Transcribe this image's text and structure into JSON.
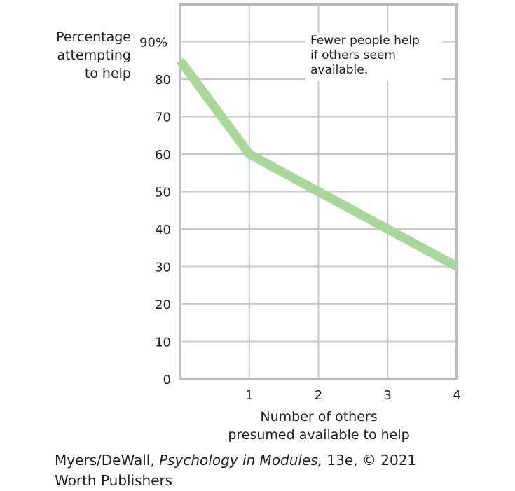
{
  "chart_data": {
    "type": "line",
    "x": [
      0,
      1,
      2,
      3,
      4
    ],
    "series": [
      {
        "name": "Percentage attempting to help",
        "values": [
          85,
          60,
          50,
          40,
          30
        ]
      }
    ],
    "xticks": [
      "1",
      "2",
      "3",
      "4"
    ],
    "yticks": [
      "0",
      "10",
      "20",
      "30",
      "40",
      "50",
      "60",
      "70",
      "80",
      "90%"
    ],
    "ylim": [
      0,
      100
    ],
    "xlim": [
      0,
      4
    ],
    "ylabel": [
      "Percentage",
      "attempting",
      "to help"
    ],
    "xlabel": [
      "Number of others",
      "presumed available to help"
    ],
    "annotation": [
      "Fewer people help",
      "if others seem",
      "available."
    ],
    "grid": true
  },
  "credit": {
    "authors": "Myers/DeWall, ",
    "book": "Psychology in Modules,",
    "edition": " 13e, © 2021",
    "publisher": "Worth Publishers"
  },
  "colors": {
    "line": "#a8d899",
    "grid": "#c8c8c8",
    "frame": "#bdbdbd",
    "text": "#231f20"
  }
}
